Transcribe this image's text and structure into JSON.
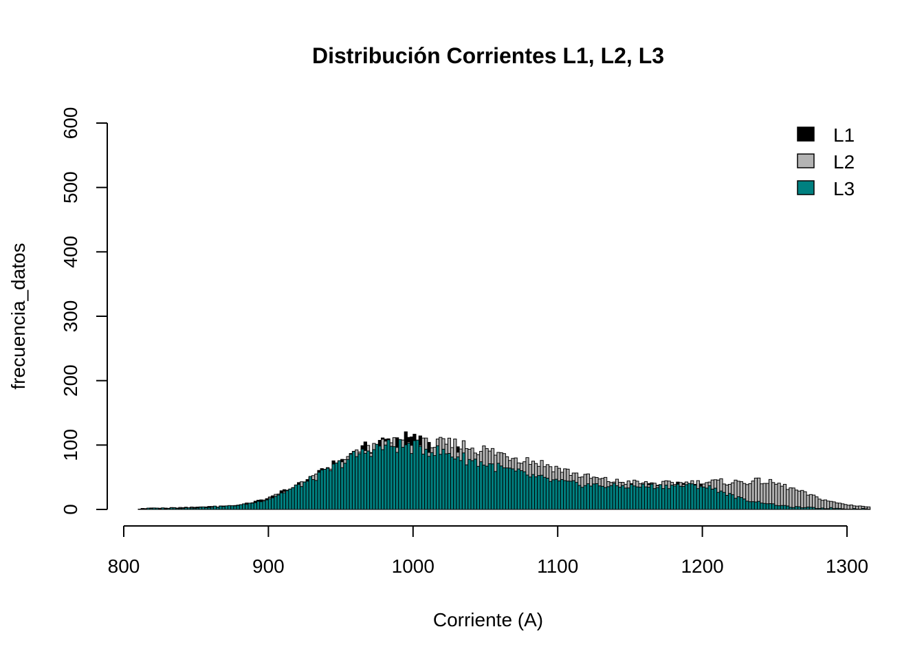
{
  "chart_data": {
    "type": "bar",
    "title": "Distribución Corrientes L1, L2, L3",
    "xlabel": "Corriente (A)",
    "ylabel": "frecuencia_datos",
    "xlim": [
      800,
      1315
    ],
    "ylim": [
      0,
      600
    ],
    "xticks": [
      "800",
      "900",
      "1000",
      "1100",
      "1200",
      "1300"
    ],
    "yticks": [
      "0",
      "100",
      "200",
      "300",
      "400",
      "500",
      "600"
    ],
    "grid": false,
    "legend_position": "top-right",
    "overlay": true,
    "bin_width": 2,
    "bin_start": 810,
    "series": [
      {
        "name": "L1",
        "color": "#000000",
        "points": [
          [
            810,
            1
          ],
          [
            830,
            2
          ],
          [
            850,
            3
          ],
          [
            870,
            5
          ],
          [
            880,
            7
          ],
          [
            890,
            12
          ],
          [
            900,
            18
          ],
          [
            910,
            28
          ],
          [
            920,
            38
          ],
          [
            930,
            50
          ],
          [
            940,
            62
          ],
          [
            950,
            76
          ],
          [
            960,
            88
          ],
          [
            970,
            98
          ],
          [
            980,
            106
          ],
          [
            990,
            110
          ],
          [
            1000,
            108
          ],
          [
            1010,
            102
          ],
          [
            1020,
            94
          ],
          [
            1030,
            88
          ],
          [
            1040,
            80
          ],
          [
            1050,
            72
          ],
          [
            1060,
            64
          ],
          [
            1070,
            58
          ],
          [
            1080,
            52
          ],
          [
            1090,
            46
          ],
          [
            1100,
            42
          ],
          [
            1110,
            40
          ],
          [
            1120,
            38
          ],
          [
            1130,
            37
          ],
          [
            1140,
            38
          ],
          [
            1150,
            38
          ],
          [
            1160,
            37
          ],
          [
            1170,
            38
          ],
          [
            1180,
            40
          ],
          [
            1190,
            39
          ],
          [
            1200,
            36
          ],
          [
            1210,
            31
          ],
          [
            1220,
            23
          ],
          [
            1230,
            15
          ],
          [
            1240,
            11
          ],
          [
            1250,
            8
          ],
          [
            1260,
            6
          ],
          [
            1270,
            4
          ],
          [
            1280,
            3
          ],
          [
            1290,
            2
          ],
          [
            1300,
            2
          ],
          [
            1315,
            1
          ]
        ]
      },
      {
        "name": "L2",
        "color": "#b3b3b3",
        "points": [
          [
            810,
            1
          ],
          [
            830,
            2
          ],
          [
            850,
            3
          ],
          [
            870,
            5
          ],
          [
            880,
            7
          ],
          [
            890,
            11
          ],
          [
            900,
            17
          ],
          [
            910,
            27
          ],
          [
            920,
            37
          ],
          [
            930,
            48
          ],
          [
            940,
            60
          ],
          [
            950,
            72
          ],
          [
            960,
            84
          ],
          [
            970,
            93
          ],
          [
            980,
            99
          ],
          [
            990,
            101
          ],
          [
            1000,
            101
          ],
          [
            1010,
            100
          ],
          [
            1020,
            100
          ],
          [
            1030,
            100
          ],
          [
            1040,
            97
          ],
          [
            1050,
            91
          ],
          [
            1060,
            86
          ],
          [
            1070,
            82
          ],
          [
            1080,
            76
          ],
          [
            1090,
            70
          ],
          [
            1100,
            63
          ],
          [
            1110,
            56
          ],
          [
            1120,
            50
          ],
          [
            1130,
            46
          ],
          [
            1140,
            43
          ],
          [
            1150,
            42
          ],
          [
            1160,
            40
          ],
          [
            1170,
            40
          ],
          [
            1180,
            40
          ],
          [
            1190,
            41
          ],
          [
            1200,
            42
          ],
          [
            1210,
            43
          ],
          [
            1220,
            42
          ],
          [
            1230,
            43
          ],
          [
            1240,
            44
          ],
          [
            1250,
            40
          ],
          [
            1260,
            33
          ],
          [
            1270,
            25
          ],
          [
            1280,
            17
          ],
          [
            1290,
            11
          ],
          [
            1300,
            7
          ],
          [
            1310,
            5
          ],
          [
            1315,
            3
          ]
        ]
      },
      {
        "name": "L3",
        "color": "#008080",
        "points": [
          [
            810,
            1
          ],
          [
            830,
            2
          ],
          [
            850,
            3
          ],
          [
            870,
            5
          ],
          [
            880,
            7
          ],
          [
            890,
            11
          ],
          [
            900,
            17
          ],
          [
            910,
            27
          ],
          [
            920,
            37
          ],
          [
            930,
            48
          ],
          [
            940,
            60
          ],
          [
            950,
            73
          ],
          [
            960,
            84
          ],
          [
            970,
            93
          ],
          [
            980,
            98
          ],
          [
            990,
            99
          ],
          [
            1000,
            97
          ],
          [
            1010,
            93
          ],
          [
            1020,
            88
          ],
          [
            1030,
            82
          ],
          [
            1040,
            76
          ],
          [
            1050,
            70
          ],
          [
            1060,
            64
          ],
          [
            1070,
            58
          ],
          [
            1080,
            52
          ],
          [
            1090,
            47
          ],
          [
            1100,
            43
          ],
          [
            1110,
            40
          ],
          [
            1120,
            38
          ],
          [
            1130,
            37
          ],
          [
            1140,
            36
          ],
          [
            1150,
            36
          ],
          [
            1160,
            36
          ],
          [
            1170,
            36
          ],
          [
            1180,
            37
          ],
          [
            1190,
            37
          ],
          [
            1200,
            36
          ],
          [
            1210,
            30
          ],
          [
            1220,
            21
          ],
          [
            1230,
            14
          ],
          [
            1240,
            11
          ],
          [
            1250,
            7
          ],
          [
            1260,
            4
          ],
          [
            1270,
            3
          ],
          [
            1280,
            2
          ],
          [
            1290,
            2
          ],
          [
            1300,
            1
          ],
          [
            1315,
            1
          ]
        ]
      }
    ]
  }
}
